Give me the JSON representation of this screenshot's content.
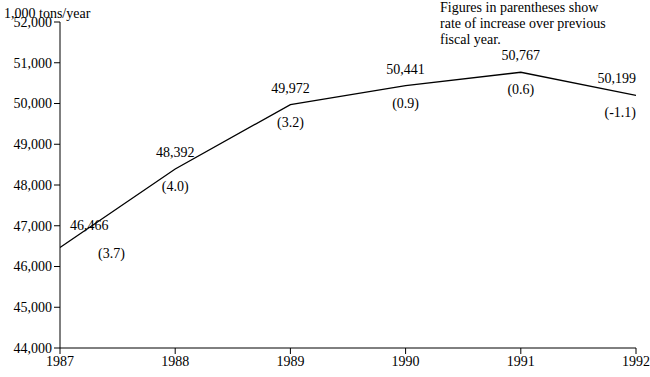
{
  "chart_data": {
    "type": "line",
    "y_label": "1,000 tons/year",
    "note": [
      "Figures in parentheses show",
      "rate of increase over previous",
      "fiscal year."
    ],
    "x": [
      1987,
      1988,
      1989,
      1990,
      1991,
      1992
    ],
    "values": [
      46466,
      48392,
      49972,
      50441,
      50767,
      50199
    ],
    "value_labels": [
      "46,466",
      "48,392",
      "49,972",
      "50,441",
      "50,767",
      "50,199"
    ],
    "rates": [
      3.7,
      4.0,
      3.2,
      0.9,
      0.6,
      -1.1
    ],
    "rate_labels": [
      "(3.7)",
      "(4.0)",
      "(3.2)",
      "(0.9)",
      "(0.6)",
      "(-1.1)"
    ],
    "color": "#000000",
    "xlim": [
      1987,
      1992
    ],
    "xticks": [
      1987,
      1988,
      1989,
      1990,
      1991,
      1992
    ],
    "ylim": [
      44000,
      52000
    ],
    "yticks": [
      {
        "value": 44000,
        "label": "44,000"
      },
      {
        "value": 45000,
        "label": "45,000"
      },
      {
        "value": 46000,
        "label": "46,000"
      },
      {
        "value": 47000,
        "label": "47,000"
      },
      {
        "value": 48000,
        "label": "48,000"
      },
      {
        "value": 49000,
        "label": "49,000"
      },
      {
        "value": 50000,
        "label": "50,000"
      },
      {
        "value": 51000,
        "label": "51,000"
      },
      {
        "value": 52000,
        "label": "52,000"
      }
    ],
    "grid": false,
    "data_labels": true
  }
}
